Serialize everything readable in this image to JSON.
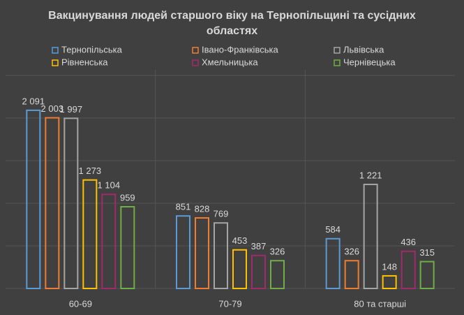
{
  "chart_data": {
    "type": "bar",
    "title": "Вакцинування людей старшого віку на Тернопільщині та сусідних областях",
    "categories": [
      "60-69",
      "70-79",
      "80 та старші"
    ],
    "series": [
      {
        "name": "Тернопільська",
        "color": "#5b9bd5",
        "values": [
          2091,
          851,
          584
        ],
        "value_labels": [
          "2 091",
          "851",
          "584"
        ]
      },
      {
        "name": "Івано-Франківська",
        "color": "#ed7d31",
        "values": [
          2003,
          828,
          326
        ],
        "value_labels": [
          "2 003",
          "828",
          "326"
        ]
      },
      {
        "name": "Львівська",
        "color": "#a5a5a5",
        "values": [
          1997,
          769,
          1221
        ],
        "value_labels": [
          "1 997",
          "769",
          "1 221"
        ]
      },
      {
        "name": "Рівненська",
        "color": "#ffc000",
        "values": [
          1273,
          453,
          148
        ],
        "value_labels": [
          "1 273",
          "453",
          "148"
        ]
      },
      {
        "name": "Хмельницька",
        "color": "#a02b6b",
        "values": [
          1104,
          387,
          436
        ],
        "value_labels": [
          "1 104",
          "387",
          "436"
        ]
      },
      {
        "name": "Чернівецька",
        "color": "#70ad47",
        "values": [
          959,
          326,
          315
        ],
        "value_labels": [
          "959",
          "326",
          "315"
        ]
      }
    ],
    "ylim": [
      0,
      2500
    ],
    "yticks": [
      0,
      500,
      1000,
      1500,
      2000,
      2500
    ],
    "grid": true,
    "legend": "top"
  }
}
